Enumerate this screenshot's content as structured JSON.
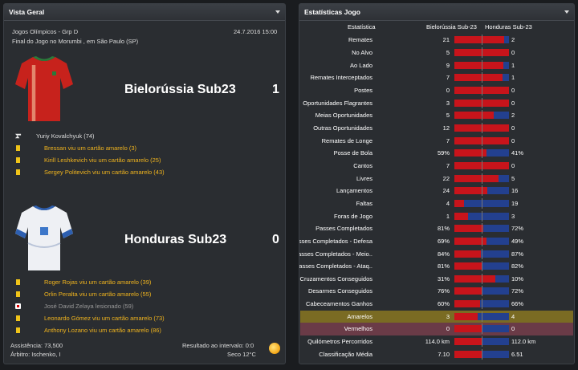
{
  "overview": {
    "title": "Vista Geral",
    "competition": "Jogos Olímpicos - Grp D",
    "datetime": "24.7.2016 15:00",
    "venue": "Final do Jogo no Morumbi , em São Paulo (SP)",
    "home": {
      "name": "Bielorússia Sub23",
      "score": "1",
      "events": [
        {
          "type": "goal",
          "text": "Yuriy Kovalchyuk (74)"
        },
        {
          "type": "yellow",
          "text": "Bressan viu um cartão amarelo (3)"
        },
        {
          "type": "yellow",
          "text": "Kirill Leshkevich viu um cartão amarelo (25)"
        },
        {
          "type": "yellow",
          "text": "Sergey Politevich viu um cartão amarelo (43)"
        }
      ]
    },
    "away": {
      "name": "Honduras Sub23",
      "score": "0",
      "events": [
        {
          "type": "yellow",
          "text": "Roger Rojas viu um cartão amarelo (39)"
        },
        {
          "type": "yellow",
          "text": "Orlin Peralta viu um cartão amarelo (55)"
        },
        {
          "type": "injury",
          "text": "José David Zelaya lesionado (59)"
        },
        {
          "type": "yellow",
          "text": "Leonardo Gómez viu um cartão amarelo (73)"
        },
        {
          "type": "yellow",
          "text": "Anthony Lozano viu um cartão amarelo (86)"
        }
      ]
    },
    "attendance": "Assistência: 73,500",
    "referee": "Árbitro: Ischenko, I",
    "halftime": "Resultado ao intervalo: 0:0",
    "weather": "Seco 12°C",
    "colors": {
      "yellow_card": "#f0c419",
      "event_text": "#f0b41e"
    }
  },
  "stats": {
    "title": "Estatísticas Jogo",
    "col_stat": "Estatística",
    "col_home": "Bielorússia Sub-23",
    "col_away": "Honduras Sub-23",
    "colors": {
      "home": "#c8141b",
      "away": "#23408f"
    },
    "rows": [
      {
        "label": "Remates",
        "home": "21",
        "away": "2",
        "share": 0.913
      },
      {
        "label": "No Alvo",
        "home": "5",
        "away": "0",
        "share": 1
      },
      {
        "label": "Ao Lado",
        "home": "9",
        "away": "1",
        "share": 0.9
      },
      {
        "label": "Remates Interceptados",
        "home": "7",
        "away": "1",
        "share": 0.875
      },
      {
        "label": "Postes",
        "home": "0",
        "away": "0",
        "share": 1
      },
      {
        "label": "Oportunidades Flagrantes",
        "home": "3",
        "away": "0",
        "share": 1
      },
      {
        "label": "Meias Oportunidades",
        "home": "5",
        "away": "2",
        "share": 0.714
      },
      {
        "label": "Outras Oportunidades",
        "home": "12",
        "away": "0",
        "share": 1
      },
      {
        "label": "Remates de Longe",
        "home": "7",
        "away": "0",
        "share": 1
      },
      {
        "label": "Posse de Bola",
        "home": "59%",
        "away": "41%",
        "share": 0.59
      },
      {
        "label": "Cantos",
        "home": "7",
        "away": "0",
        "share": 1
      },
      {
        "label": "Livres",
        "home": "22",
        "away": "5",
        "share": 0.815
      },
      {
        "label": "Lançamentos",
        "home": "24",
        "away": "16",
        "share": 0.6
      },
      {
        "label": "Faltas",
        "home": "4",
        "away": "19",
        "share": 0.174
      },
      {
        "label": "Foras de Jogo",
        "home": "1",
        "away": "3",
        "share": 0.25
      },
      {
        "label": "Passes Completados",
        "home": "81%",
        "away": "72%",
        "share": 0.53
      },
      {
        "label": "Passes Completados - Defesa",
        "home": "69%",
        "away": "49%",
        "share": 0.585
      },
      {
        "label": "Passes Completados - Meio..",
        "home": "84%",
        "away": "87%",
        "share": 0.49
      },
      {
        "label": "Passes Completados - Ataq..",
        "home": "81%",
        "away": "82%",
        "share": 0.497
      },
      {
        "label": "Cruzamentos Conseguidos",
        "home": "31%",
        "away": "10%",
        "share": 0.756
      },
      {
        "label": "Desarmes Conseguidos",
        "home": "76%",
        "away": "72%",
        "share": 0.514
      },
      {
        "label": "Cabeceamentos Ganhos",
        "home": "60%",
        "away": "66%",
        "share": 0.476
      },
      {
        "label": "Amarelos",
        "home": "3",
        "away": "4",
        "share": 0.429,
        "highlight": "yellow"
      },
      {
        "label": "Vermelhos",
        "home": "0",
        "away": "0",
        "share": 0.5,
        "highlight": "red"
      },
      {
        "label": "Quilómetros Percorridos",
        "home": "114.0 km",
        "away": "112.0 km",
        "share": 0.504
      },
      {
        "label": "Classificação Média",
        "home": "7.10",
        "away": "6.51",
        "share": 0.522
      }
    ]
  }
}
